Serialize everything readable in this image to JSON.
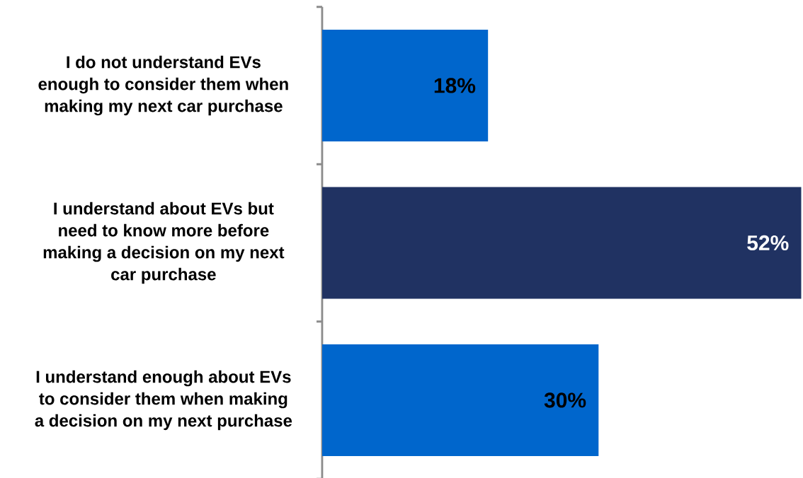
{
  "chart_data": {
    "type": "bar",
    "orientation": "horizontal",
    "categories": [
      "I do not understand EVs enough to consider them when making my next car purchase",
      "I understand about EVs but need to know more before making a decision on my next car purchase",
      "I understand enough about EVs to consider them when making a decision on my next purchase"
    ],
    "values": [
      18,
      52,
      30
    ],
    "colors": [
      "#0066cc",
      "#203262",
      "#0066cc"
    ],
    "value_labels": [
      "18%",
      "52%",
      "30%"
    ]
  }
}
